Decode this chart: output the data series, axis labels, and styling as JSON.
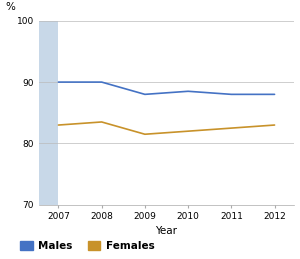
{
  "years": [
    2007,
    2008,
    2009,
    2010,
    2011,
    2012
  ],
  "males": [
    90.0,
    90.0,
    88.0,
    88.5,
    88.0,
    88.0
  ],
  "females": [
    83.0,
    83.5,
    81.5,
    82.0,
    82.5,
    83.0
  ],
  "male_color": "#4472C4",
  "female_color": "#C8922A",
  "ylim": [
    70,
    100
  ],
  "yticks": [
    70,
    80,
    90,
    100
  ],
  "xlabel": "Year",
  "ylabel": "%",
  "legend_labels": [
    "Males",
    "Females"
  ],
  "shade_color": "#C8D8E8",
  "grid_color": "#BBBBBB",
  "background_color": "#FFFFFF",
  "axis_color": "#AAAAAA"
}
